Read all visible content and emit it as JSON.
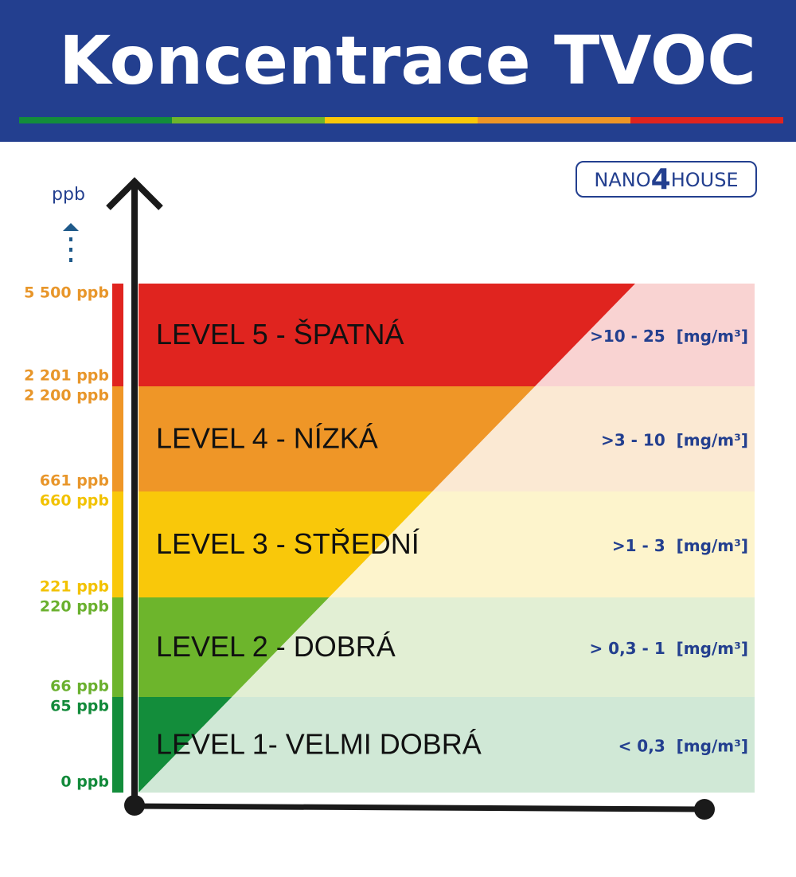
{
  "header": {
    "title": "Koncentrace  TVOC"
  },
  "brand": {
    "left": "NANO",
    "mid": "4",
    "right": "HOUSE"
  },
  "axis_unit": "ppb",
  "levels": [
    {
      "name": "LEVEL 5 - ŠPATNÁ",
      "top": "5 500 ppb",
      "bottom": "2 201 ppb",
      "range": ">10 - 25  [mg/m³]",
      "color": "#e0241f",
      "light": "#f9d3d2",
      "label_color": "#e8962a"
    },
    {
      "name": "LEVEL 4 - NÍZKÁ",
      "top": "2 200 ppb",
      "bottom": "661 ppb",
      "range": ">3 - 10  [mg/m³]",
      "color": "#ef9627",
      "light": "#fbe9d3",
      "label_color": "#e8962a"
    },
    {
      "name": "LEVEL 3 - STŘEDNÍ",
      "top": "660 ppb",
      "bottom": "221 ppb",
      "range": ">1 - 3  [mg/m³]",
      "color": "#f9c80a",
      "light": "#fdf4cc",
      "label_color": "#f2c200"
    },
    {
      "name": "LEVEL 2 - DOBRÁ",
      "top": "220 ppb",
      "bottom": "66 ppb",
      "range": "> 0,3 - 1  [mg/m³]",
      "color": "#6db52c",
      "light": "#e2efd4",
      "label_color": "#6ab02e"
    },
    {
      "name": "LEVEL 1- VELMI DOBRÁ",
      "top": "65 ppb",
      "bottom": "0 ppb",
      "range": "< 0,3  [mg/m³]",
      "color": "#138d3b",
      "light": "#d0e8d6",
      "label_color": "#128a3a"
    }
  ]
}
